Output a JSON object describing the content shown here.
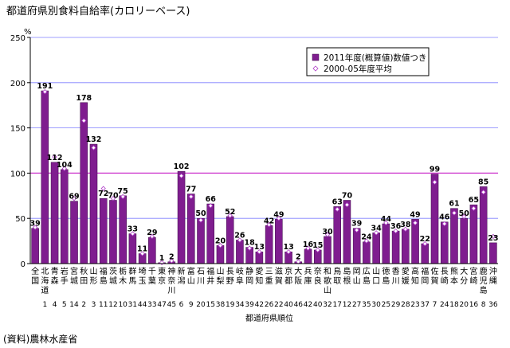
{
  "page": {
    "title": "都道府県別食料自給率(カロリーベース)",
    "source": "(資料)農林水産省"
  },
  "colors": {
    "bar": "#7f1d8f",
    "bar_edge": "#3d0a48",
    "marker_fill": "#ffffff",
    "marker_edge": "#b040c8",
    "gridline": "#7f7fff",
    "ref_line": "#cc33cc",
    "axis": "#000000"
  },
  "chart_data": {
    "type": "bar",
    "title": "都道府県別食料自給率(カロリーベース)",
    "xlabel": "都道府県順位",
    "ylabel": "%",
    "ylim": [
      0,
      250
    ],
    "yticks": [
      0,
      50,
      100,
      150,
      200,
      250
    ],
    "grid": true,
    "reference_line": 100,
    "legend_position": "top-right",
    "categories": [
      {
        "name": "全国",
        "label": [
          "全",
          "国"
        ],
        "rank": ""
      },
      {
        "name": "北海道",
        "label": [
          "北",
          "海",
          "道"
        ],
        "rank": "1"
      },
      {
        "name": "青森",
        "label": [
          "青",
          "森"
        ],
        "rank": "4"
      },
      {
        "name": "岩手",
        "label": [
          "岩",
          "手"
        ],
        "rank": "5"
      },
      {
        "name": "宮城",
        "label": [
          "宮",
          "城"
        ],
        "rank": "14"
      },
      {
        "name": "秋田",
        "label": [
          "秋",
          "田"
        ],
        "rank": "2"
      },
      {
        "name": "山形",
        "label": [
          "山",
          "形"
        ],
        "rank": "3"
      },
      {
        "name": "福島",
        "label": [
          "福",
          "島"
        ],
        "rank": "11"
      },
      {
        "name": "茨城",
        "label": [
          "茨",
          "城"
        ],
        "rank": "12"
      },
      {
        "name": "栃木",
        "label": [
          "栃",
          "木"
        ],
        "rank": "10"
      },
      {
        "name": "群馬",
        "label": [
          "群",
          "馬"
        ],
        "rank": "31"
      },
      {
        "name": "埼玉",
        "label": [
          "埼",
          "玉"
        ],
        "rank": "44"
      },
      {
        "name": "千葉",
        "label": [
          "千",
          "葉"
        ],
        "rank": "33"
      },
      {
        "name": "東京",
        "label": [
          "東",
          "京"
        ],
        "rank": "47"
      },
      {
        "name": "神奈川",
        "label": [
          "神",
          "奈",
          "川"
        ],
        "rank": "45"
      },
      {
        "name": "新潟",
        "label": [
          "新",
          "潟"
        ],
        "rank": "6"
      },
      {
        "name": "富山",
        "label": [
          "富",
          "山"
        ],
        "rank": "9"
      },
      {
        "name": "石川",
        "label": [
          "石",
          "川"
        ],
        "rank": "20"
      },
      {
        "name": "福井",
        "label": [
          "福",
          "井"
        ],
        "rank": "15"
      },
      {
        "name": "山梨",
        "label": [
          "山",
          "梨"
        ],
        "rank": "38"
      },
      {
        "name": "長野",
        "label": [
          "長",
          "野"
        ],
        "rank": "19"
      },
      {
        "name": "岐阜",
        "label": [
          "岐",
          "阜"
        ],
        "rank": "34"
      },
      {
        "name": "静岡",
        "label": [
          "静",
          "岡"
        ],
        "rank": "39"
      },
      {
        "name": "愛知",
        "label": [
          "愛",
          "知"
        ],
        "rank": "42"
      },
      {
        "name": "三重",
        "label": [
          "三",
          "重"
        ],
        "rank": "26"
      },
      {
        "name": "滋賀",
        "label": [
          "滋",
          "賀"
        ],
        "rank": "22"
      },
      {
        "name": "京都",
        "label": [
          "京",
          "都"
        ],
        "rank": "40"
      },
      {
        "name": "大阪",
        "label": [
          "大",
          "阪"
        ],
        "rank": "46"
      },
      {
        "name": "兵庫",
        "label": [
          "兵",
          "庫"
        ],
        "rank": "42"
      },
      {
        "name": "奈良",
        "label": [
          "奈",
          "良"
        ],
        "rank": "40"
      },
      {
        "name": "和歌山",
        "label": [
          "和",
          "歌",
          "山"
        ],
        "rank": "32"
      },
      {
        "name": "鳥取",
        "label": [
          "鳥",
          "取"
        ],
        "rank": "17"
      },
      {
        "name": "島根",
        "label": [
          "島",
          "根"
        ],
        "rank": "12"
      },
      {
        "name": "岡山",
        "label": [
          "岡",
          "山"
        ],
        "rank": "27"
      },
      {
        "name": "広島",
        "label": [
          "広",
          "島"
        ],
        "rank": "35"
      },
      {
        "name": "山口",
        "label": [
          "山",
          "口"
        ],
        "rank": "30"
      },
      {
        "name": "徳島",
        "label": [
          "徳",
          "島"
        ],
        "rank": "25"
      },
      {
        "name": "香川",
        "label": [
          "香",
          "川"
        ],
        "rank": "29"
      },
      {
        "name": "愛媛",
        "label": [
          "愛",
          "媛"
        ],
        "rank": "28"
      },
      {
        "name": "高知",
        "label": [
          "高",
          "知"
        ],
        "rank": "23"
      },
      {
        "name": "福岡",
        "label": [
          "福",
          "岡"
        ],
        "rank": "37"
      },
      {
        "name": "佐賀",
        "label": [
          "佐",
          "賀"
        ],
        "rank": "7"
      },
      {
        "name": "長崎",
        "label": [
          "長",
          "崎"
        ],
        "rank": "24"
      },
      {
        "name": "熊本",
        "label": [
          "熊",
          "本"
        ],
        "rank": "18"
      },
      {
        "name": "大分",
        "label": [
          "大",
          "分"
        ],
        "rank": "20"
      },
      {
        "name": "宮崎",
        "label": [
          "宮",
          "崎"
        ],
        "rank": "16"
      },
      {
        "name": "鹿児島",
        "label": [
          "鹿",
          "児",
          "島"
        ],
        "rank": "8"
      },
      {
        "name": "沖縄",
        "label": [
          "沖",
          "縄"
        ],
        "rank": "36"
      }
    ],
    "series": [
      {
        "name": "2011年度(概算値)数値つき",
        "kind": "bar",
        "values": [
          39,
          191,
          112,
          104,
          69,
          178,
          132,
          72,
          70,
          75,
          33,
          11,
          29,
          1,
          2,
          102,
          77,
          50,
          66,
          20,
          52,
          26,
          18,
          13,
          42,
          49,
          13,
          2,
          16,
          15,
          30,
          63,
          70,
          39,
          24,
          34,
          44,
          36,
          38,
          49,
          22,
          99,
          46,
          61,
          50,
          65,
          85,
          23
        ]
      },
      {
        "name": "2000-05年度平均",
        "kind": "marker",
        "values": [
          40,
          190,
          118,
          105,
          72,
          158,
          128,
          83,
          72,
          74,
          33,
          11,
          30,
          1,
          3,
          97,
          74,
          48,
          64,
          20,
          53,
          26,
          17,
          13,
          43,
          50,
          13,
          2,
          17,
          15,
          32,
          60,
          65,
          37,
          25,
          34,
          45,
          36,
          38,
          45,
          22,
          90,
          44,
          56,
          52,
          61,
          79,
          30
        ]
      }
    ]
  }
}
